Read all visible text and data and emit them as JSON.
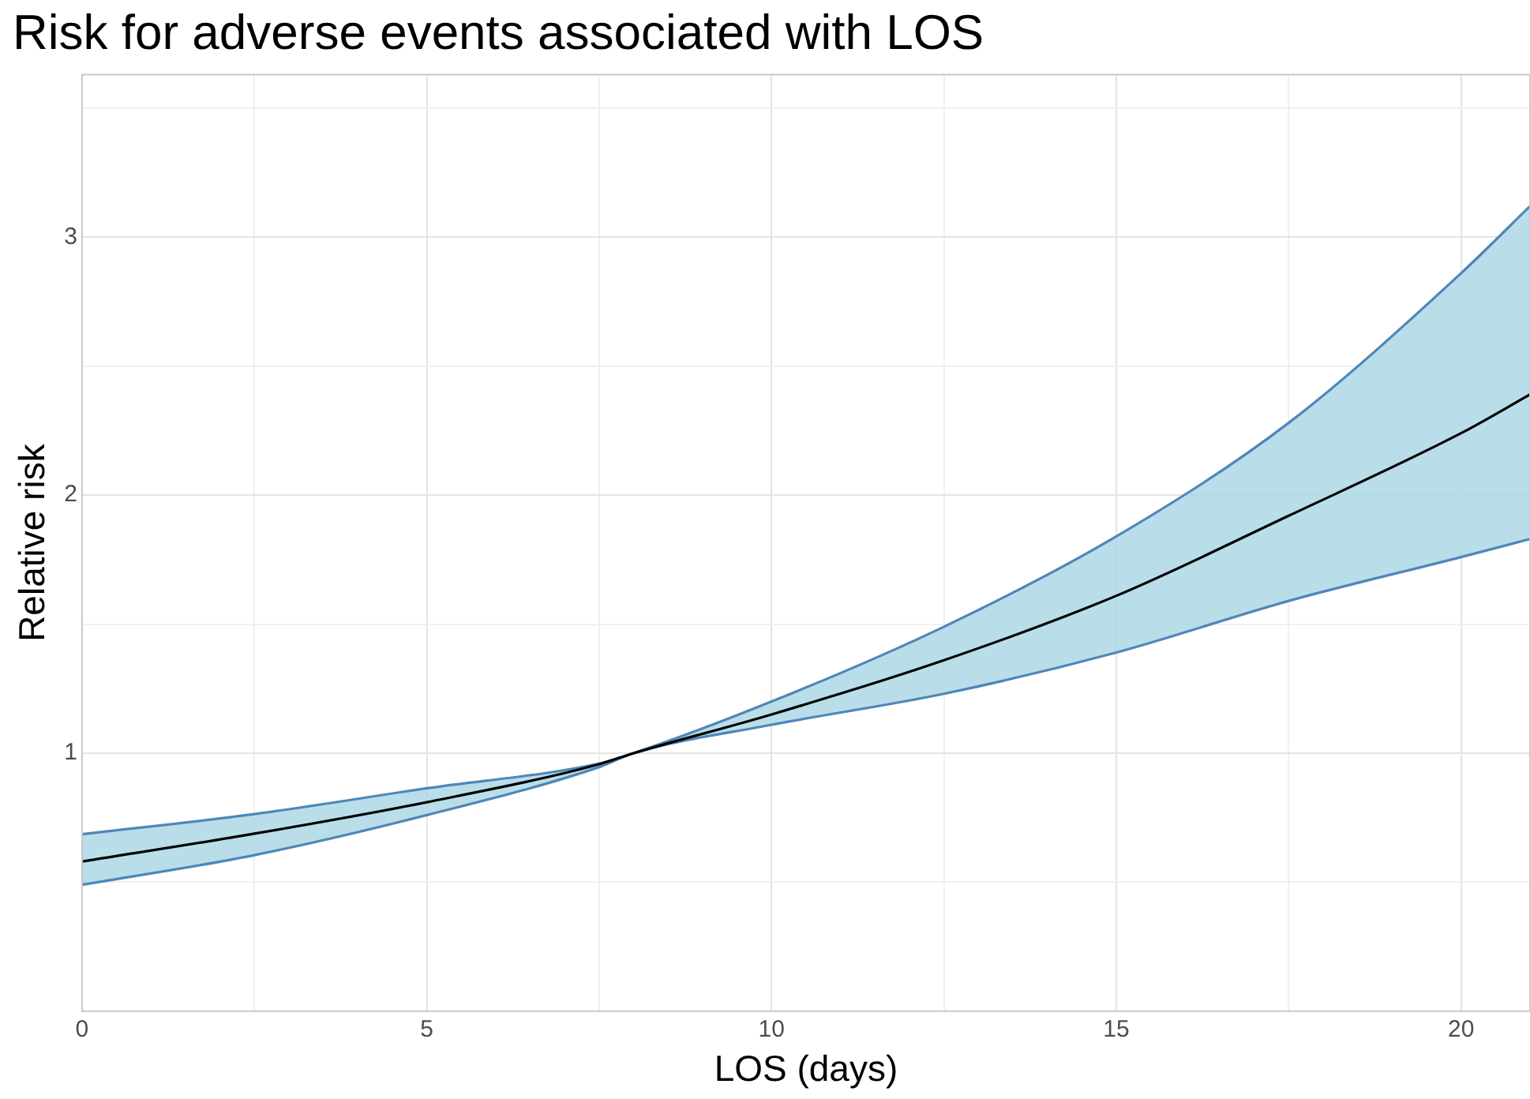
{
  "chart_data": {
    "type": "line",
    "title": "Risk for adverse events associated with LOS",
    "xlabel": "LOS (days)",
    "ylabel": "Relative risk",
    "x": [
      0,
      2.5,
      5,
      7.5,
      8,
      10,
      12.5,
      15,
      17.5,
      20,
      21
    ],
    "series": [
      {
        "color": "#000000",
        "values": [
          0.58,
          0.688,
          0.81,
          0.957,
          1,
          1.15,
          1.36,
          1.61,
          1.92,
          2.24,
          2.39
        ],
        "lower": [
          0.49,
          0.605,
          0.76,
          0.946,
          1,
          1.11,
          1.23,
          1.39,
          1.59,
          1.76,
          1.83
        ],
        "upper": [
          0.686,
          0.764,
          0.864,
          0.96,
          1,
          1.2,
          1.49,
          1.84,
          2.28,
          2.86,
          3.12
        ]
      },
      {
        "color": "#4f86b8",
        "values": [
          0.686,
          0.764,
          0.864,
          0.96,
          1,
          1.2,
          1.49,
          1.84,
          2.28,
          2.86,
          3.12
        ]
      },
      {
        "color": "#4f86b8",
        "values": [
          0.49,
          0.605,
          0.76,
          0.946,
          1,
          1.11,
          1.23,
          1.39,
          1.59,
          1.76,
          1.83
        ]
      }
    ],
    "xlim": [
      0,
      21
    ],
    "ylim": [
      0,
      3.63
    ],
    "xticks": [
      0,
      {
        "value": 2.5,
        "label": null
      },
      5,
      {
        "value": 7.5,
        "label": null
      },
      10,
      {
        "value": 12.5,
        "label": null
      },
      15,
      {
        "value": 17.5,
        "label": null
      },
      20
    ],
    "yticks": [
      {
        "value": 0.5,
        "label": null
      },
      1,
      {
        "value": 1.5,
        "label": null
      },
      2,
      {
        "value": 2.5,
        "label": null
      },
      3,
      {
        "value": 3.5,
        "label": null
      }
    ],
    "grid": true,
    "legend": false,
    "marker": "none",
    "line_style": "solid"
  }
}
